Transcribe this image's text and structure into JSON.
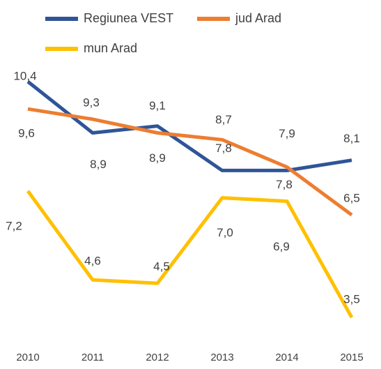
{
  "chart_data": {
    "type": "line",
    "categories": [
      "2010",
      "2011",
      "2012",
      "2013",
      "2014",
      "2015"
    ],
    "series": [
      {
        "name": "Regiunea VEST",
        "color": "#2f5597",
        "values": [
          10.4,
          8.9,
          9.1,
          7.8,
          7.8,
          8.1
        ],
        "value_labels": [
          "10,4",
          "8,9",
          "9,1",
          "7,8",
          "7,8",
          "8,1"
        ]
      },
      {
        "name": "jud Arad",
        "color": "#ed7d31",
        "values": [
          9.6,
          9.3,
          8.9,
          8.7,
          7.9,
          6.5
        ],
        "value_labels": [
          "9,6",
          "9,3",
          "8,9",
          "8,7",
          "7,9",
          "6,5"
        ]
      },
      {
        "name": "mun Arad",
        "color": "#ffc000",
        "values": [
          7.2,
          4.6,
          4.5,
          7.0,
          6.9,
          3.5
        ],
        "value_labels": [
          "7,2",
          "4,6",
          "4,5",
          "7,0",
          "6,9",
          "3,5"
        ]
      }
    ],
    "ylim": [
      3,
      11
    ]
  }
}
